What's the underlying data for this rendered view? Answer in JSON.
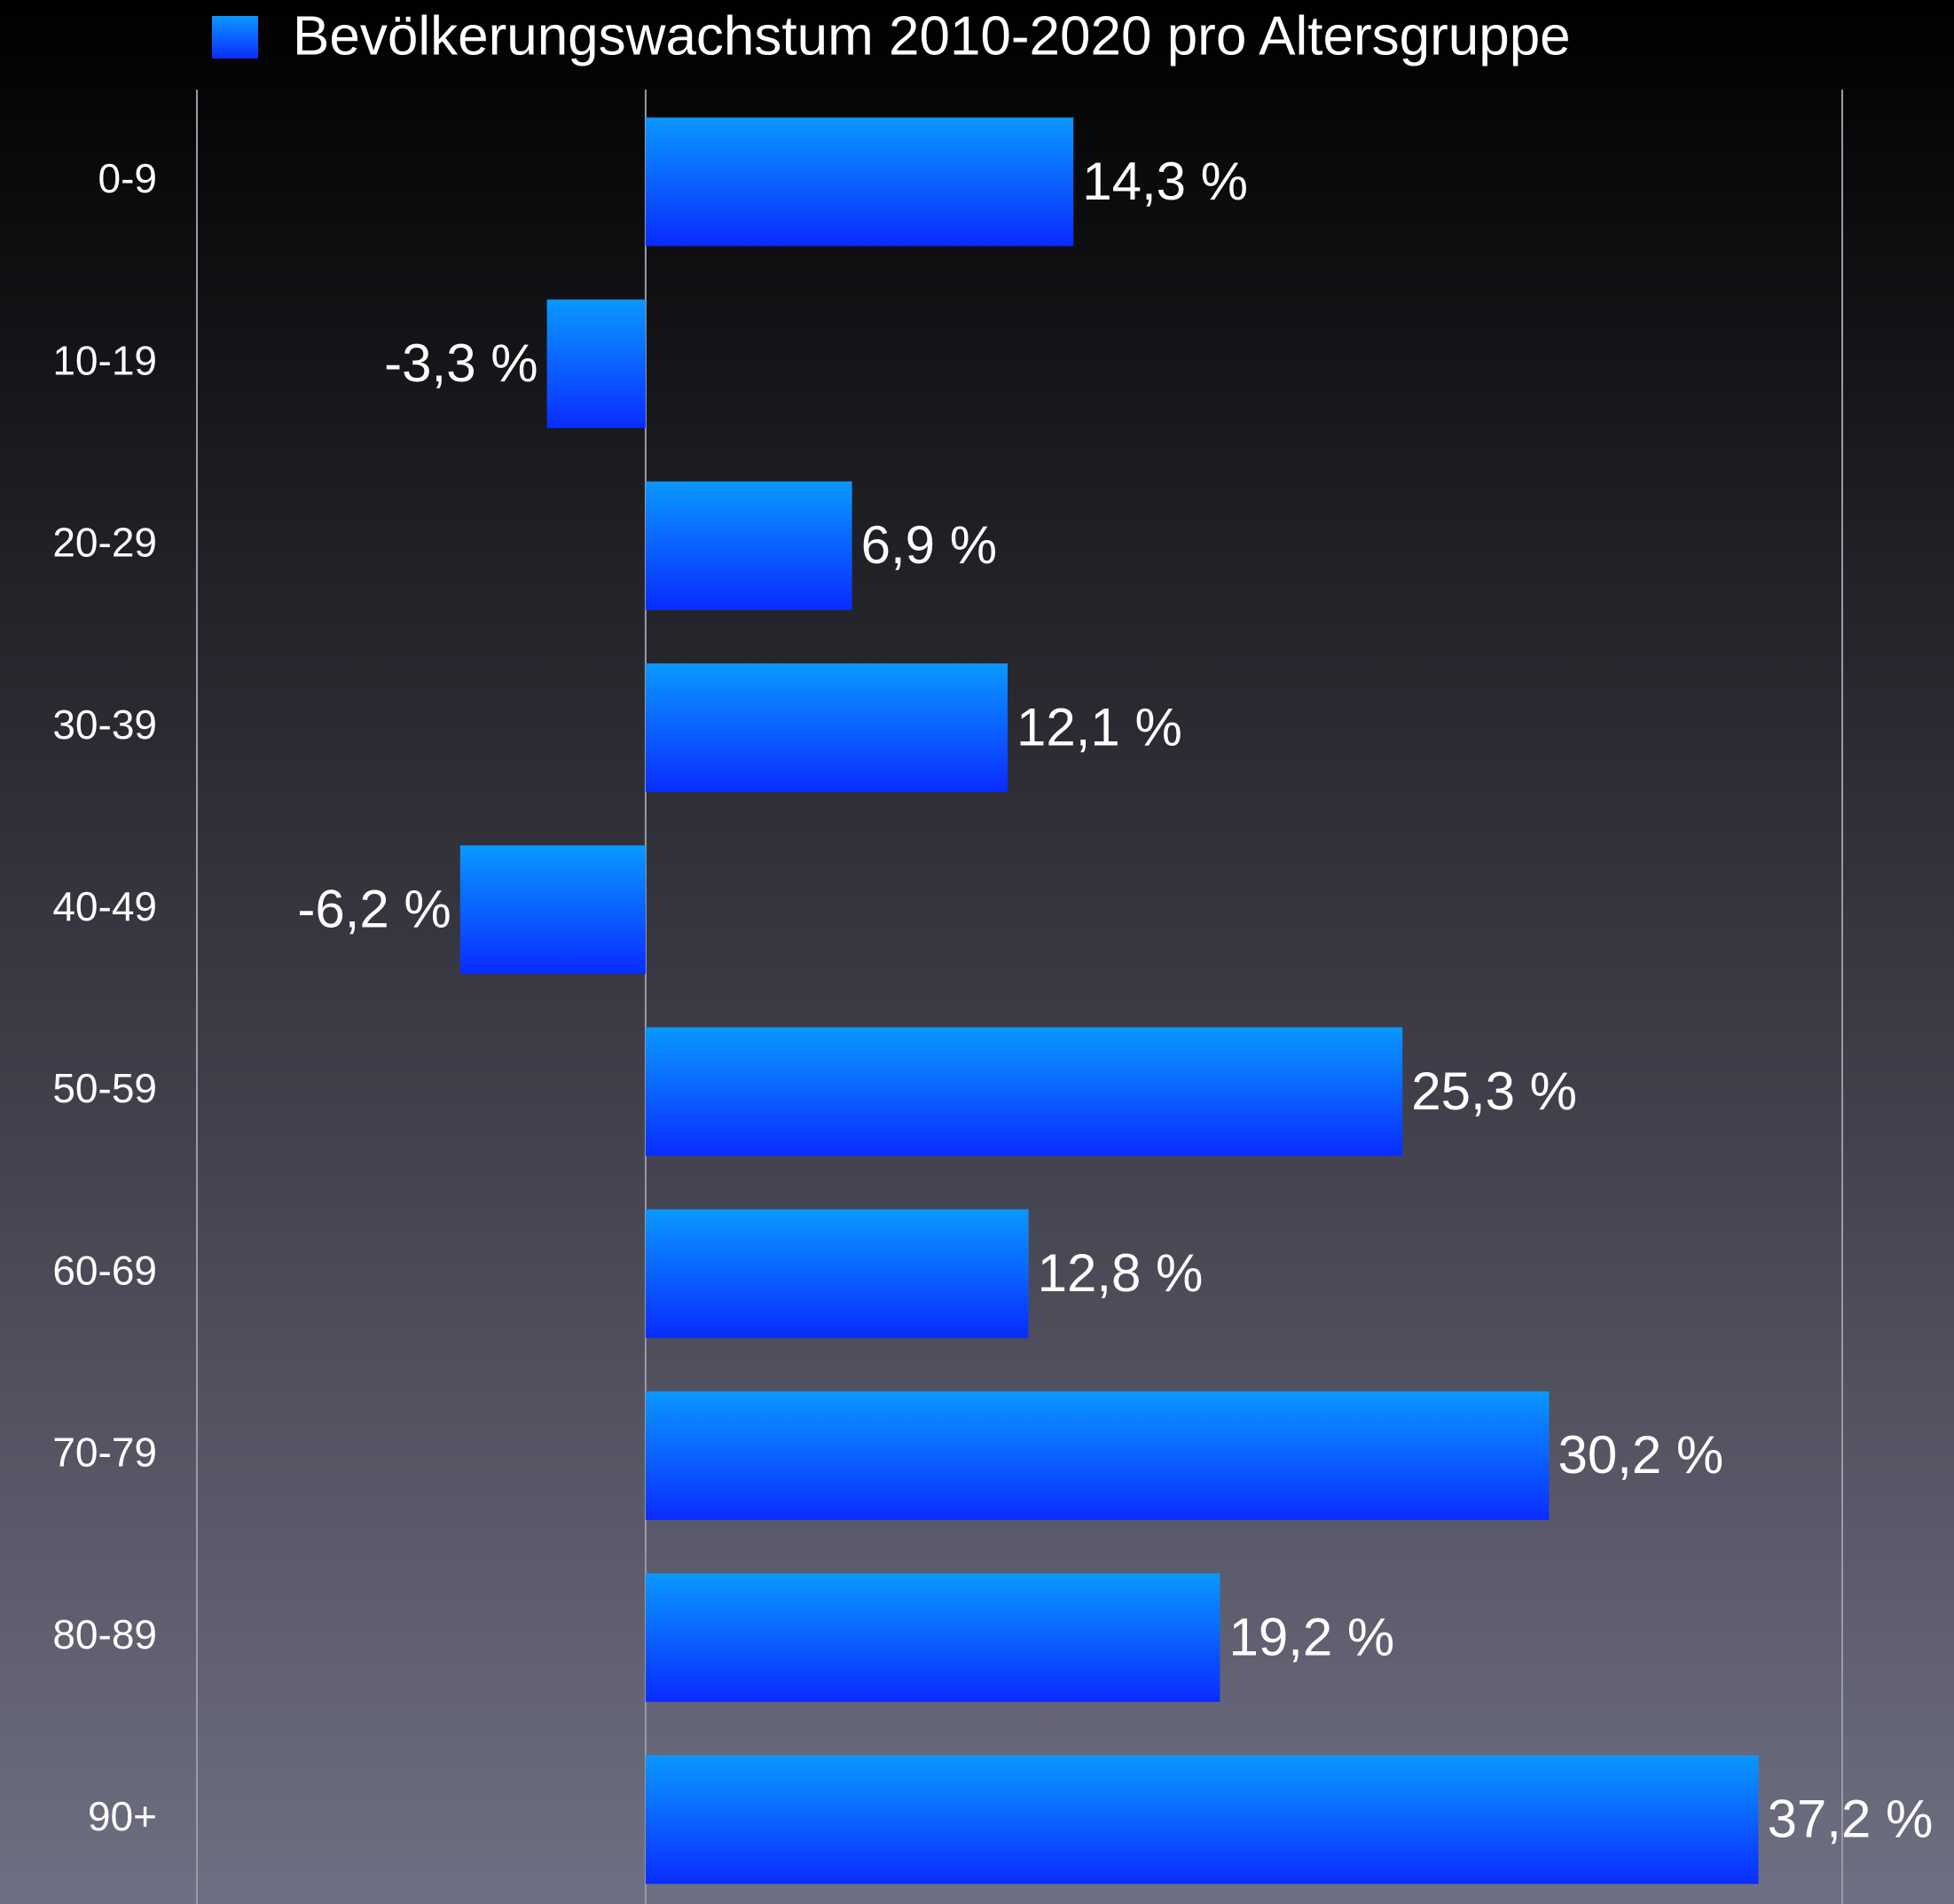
{
  "chart_data": {
    "type": "barh",
    "categories": [
      "0-9",
      "10-19",
      "20-29",
      "30-39",
      "40-49",
      "50-59",
      "60-69",
      "70-79",
      "80-89",
      "90+"
    ],
    "series": [
      {
        "name": "Bevölkerungswachstum 2010-2020 pro Altersgruppe",
        "color": "#1060ff",
        "values": [
          14.3,
          -3.3,
          6.9,
          12.1,
          -6.2,
          25.3,
          12.8,
          30.2,
          19.2,
          37.2
        ],
        "value_labels": [
          "14,3 %",
          "-3,3 %",
          "6,9 %",
          "12,1 %",
          "-6,2 %",
          "25,3 %",
          "12,8 %",
          "30,2 %",
          "19,2 %",
          "37,2 %"
        ]
      }
    ],
    "xlim": [
      -15,
      40
    ],
    "legend": "top"
  }
}
